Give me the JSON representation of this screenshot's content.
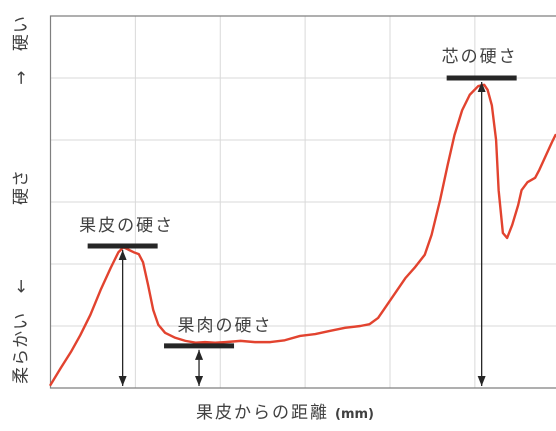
{
  "chart_data": {
    "type": "line",
    "xlabel": "果皮からの距離",
    "xlabel_unit": "(mm)",
    "ylabel": {
      "low": "柔らかい ←",
      "mid": "硬さ",
      "high": "→ 硬い"
    },
    "xlim": [
      0,
      5.95
    ],
    "ylim": [
      0,
      6
    ],
    "grid": true,
    "series": [
      {
        "color": "#e2432f",
        "x": [
          0,
          0.12,
          0.24,
          0.35,
          0.47,
          0.59,
          0.71,
          0.8,
          0.86,
          0.92,
          0.98,
          1.04,
          1.09,
          1.15,
          1.21,
          1.27,
          1.35,
          1.47,
          1.59,
          1.71,
          1.82,
          1.94,
          2.06,
          2.24,
          2.41,
          2.59,
          2.76,
          2.94,
          3.12,
          3.29,
          3.47,
          3.65,
          3.76,
          3.86,
          3.94,
          4.06,
          4.18,
          4.29,
          4.41,
          4.49,
          4.59,
          4.68,
          4.76,
          4.85,
          4.94,
          5.04,
          5.11,
          5.15,
          5.2,
          5.25,
          5.28,
          5.33,
          5.38,
          5.44,
          5.51,
          5.55,
          5.62,
          5.71,
          5.76,
          5.84,
          5.91,
          5.95
        ],
        "y": [
          0.05,
          0.32,
          0.58,
          0.85,
          1.18,
          1.58,
          1.94,
          2.19,
          2.27,
          2.23,
          2.19,
          2.16,
          2.03,
          1.66,
          1.26,
          1.02,
          0.89,
          0.81,
          0.76,
          0.73,
          0.74,
          0.73,
          0.74,
          0.76,
          0.74,
          0.74,
          0.77,
          0.84,
          0.87,
          0.92,
          0.97,
          1.0,
          1.03,
          1.13,
          1.29,
          1.53,
          1.77,
          1.94,
          2.15,
          2.47,
          3.03,
          3.6,
          4.08,
          4.48,
          4.73,
          4.87,
          4.89,
          4.81,
          4.56,
          4.0,
          3.19,
          2.5,
          2.42,
          2.63,
          2.95,
          3.19,
          3.32,
          3.39,
          3.52,
          3.76,
          3.97,
          4.08
        ]
      }
    ],
    "annotations": [
      {
        "label": "果皮の硬さ",
        "x": 0.85,
        "y": 2.29
      },
      {
        "label": "果肉の硬さ",
        "x": 1.75,
        "y": 0.68
      },
      {
        "label": "芯の硬さ",
        "x": 5.08,
        "y": 5.0
      }
    ]
  }
}
